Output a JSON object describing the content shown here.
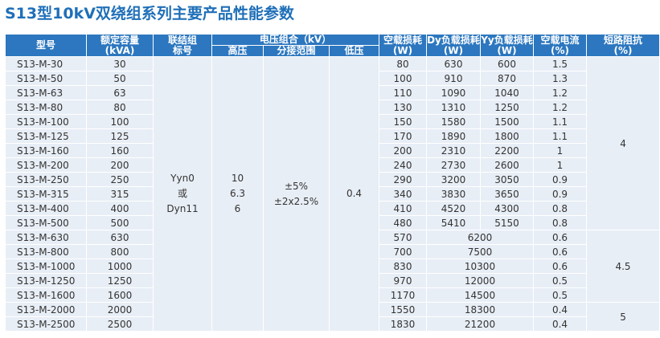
{
  "title": "S13型10kV双绕组系列主要产品性能参数",
  "headers": {
    "model": "型号",
    "capacity_1": "额定容量",
    "capacity_2": "(kVA)",
    "vector_1": "联结组",
    "vector_2": "标号",
    "voltage": "电压组合（kV）",
    "hv": "高压",
    "tap": "分接范围",
    "lv": "低压",
    "noload_loss_1": "空载损耗",
    "noload_loss_2": "(W)",
    "dy_loss_1": "Dy负载损耗",
    "dy_loss_2": "(W)",
    "yy_loss_1": "Yy负载损耗",
    "yy_loss_2": "(W)",
    "noload_current_1": "空载电流",
    "noload_current_2": "(%)",
    "impedance_1": "短路阻抗",
    "impedance_2": "(%)"
  },
  "vector": {
    "line1": "Yyn0",
    "line2": "或",
    "line3": "Dyn11"
  },
  "hv": {
    "line1": "10",
    "line2": "6.3",
    "line3": "6"
  },
  "tap": {
    "line1": "±5%",
    "line2": "±2x2.5%"
  },
  "lv": "0.4",
  "impedance_groups": [
    "4",
    "4.5",
    "5"
  ],
  "rows": [
    {
      "model": "S13-M-30",
      "capacity": "30",
      "noload": "80",
      "dy": "630",
      "yy": "600",
      "current": "1.5"
    },
    {
      "model": "S13-M-50",
      "capacity": "50",
      "noload": "100",
      "dy": "910",
      "yy": "870",
      "current": "1.3"
    },
    {
      "model": "S13-M-63",
      "capacity": "63",
      "noload": "110",
      "dy": "1090",
      "yy": "1040",
      "current": "1.2"
    },
    {
      "model": "S13-M-80",
      "capacity": "80",
      "noload": "130",
      "dy": "1310",
      "yy": "1250",
      "current": "1.2"
    },
    {
      "model": "S13-M-100",
      "capacity": "100",
      "noload": "150",
      "dy": "1580",
      "yy": "1500",
      "current": "1.1"
    },
    {
      "model": "S13-M-125",
      "capacity": "125",
      "noload": "170",
      "dy": "1890",
      "yy": "1800",
      "current": "1.1"
    },
    {
      "model": "S13-M-160",
      "capacity": "160",
      "noload": "200",
      "dy": "2310",
      "yy": "2200",
      "current": "1"
    },
    {
      "model": "S13-M-200",
      "capacity": "200",
      "noload": "240",
      "dy": "2730",
      "yy": "2600",
      "current": "1"
    },
    {
      "model": "S13-M-250",
      "capacity": "250",
      "noload": "290",
      "dy": "3200",
      "yy": "3050",
      "current": "0.9"
    },
    {
      "model": "S13-M-315",
      "capacity": "315",
      "noload": "340",
      "dy": "3830",
      "yy": "3650",
      "current": "0.9"
    },
    {
      "model": "S13-M-400",
      "capacity": "400",
      "noload": "410",
      "dy": "4520",
      "yy": "4300",
      "current": "0.8"
    },
    {
      "model": "S13-M-500",
      "capacity": "500",
      "noload": "480",
      "dy": "5410",
      "yy": "5150",
      "current": "0.8"
    },
    {
      "model": "S13-M-630",
      "capacity": "630",
      "noload": "570",
      "load": "6200",
      "current": "0.6"
    },
    {
      "model": "S13-M-800",
      "capacity": "800",
      "noload": "700",
      "load": "7500",
      "current": "0.6"
    },
    {
      "model": "S13-M-1000",
      "capacity": "1000",
      "noload": "830",
      "load": "10300",
      "current": "0.6"
    },
    {
      "model": "S13-M-1250",
      "capacity": "1250",
      "noload": "970",
      "load": "12000",
      "current": "0.5"
    },
    {
      "model": "S13-M-1600",
      "capacity": "1600",
      "noload": "1170",
      "load": "14500",
      "current": "0.5"
    },
    {
      "model": "S13-M-2000",
      "capacity": "2000",
      "noload": "1550",
      "load": "18300",
      "current": "0.4"
    },
    {
      "model": "S13-M-2500",
      "capacity": "2500",
      "noload": "1830",
      "load": "21200",
      "current": "0.4"
    }
  ]
}
